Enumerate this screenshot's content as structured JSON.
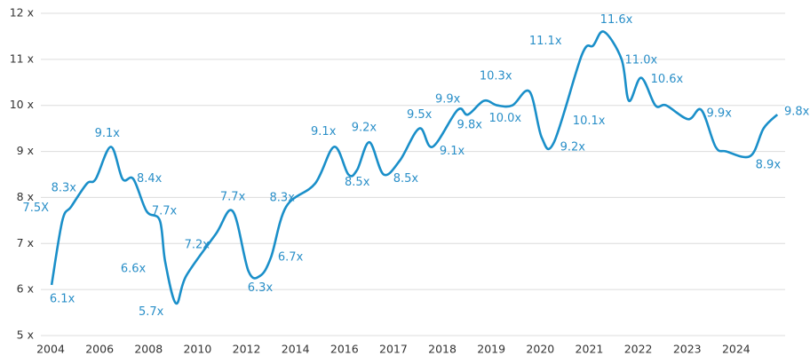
{
  "chart_data": {
    "type": "line",
    "color": "#1a8fc9",
    "x": [
      0.02,
      0.24,
      0.42,
      0.74,
      0.92,
      1.23,
      1.47,
      1.69,
      1.96,
      2.23,
      2.34,
      2.56,
      2.77,
      3.37,
      3.72,
      4.04,
      4.28,
      4.5,
      4.81,
      5.4,
      5.79,
      6.08,
      6.26,
      6.51,
      6.8,
      7.13,
      7.53,
      7.8,
      8.31,
      8.52,
      8.85,
      9.12,
      9.43,
      9.78,
      10.03,
      10.28,
      10.85,
      11.08,
      11.3,
      11.66,
      11.81,
      12.06,
      12.35,
      12.57,
      13.02,
      13.29,
      13.58,
      13.8,
      14.29,
      14.56,
      14.84
    ],
    "values": [
      6.1,
      7.5,
      7.8,
      8.3,
      8.4,
      9.1,
      8.4,
      8.4,
      7.7,
      7.5,
      6.6,
      5.7,
      6.3,
      7.2,
      7.7,
      6.4,
      6.3,
      6.7,
      7.8,
      8.3,
      9.1,
      8.5,
      8.6,
      9.2,
      8.5,
      8.8,
      9.5,
      9.1,
      9.9,
      9.8,
      10.1,
      10.0,
      10.0,
      10.3,
      9.3,
      9.2,
      11.1,
      11.3,
      11.6,
      11.0,
      10.1,
      10.6,
      10.0,
      10.0,
      9.7,
      9.9,
      9.1,
      9.0,
      8.9,
      9.5,
      9.8
    ],
    "value_labels": [
      "6.1x",
      "7.5X",
      null,
      "8.3x",
      null,
      "9.1x",
      null,
      "8.4x",
      "7.7x",
      null,
      "6.6x",
      "5.7x",
      null,
      "7.2x",
      "7.7x",
      null,
      "6.3x",
      "6.7x",
      null,
      "8.3x",
      "9.1x",
      "8.5x",
      null,
      "9.2x",
      "8.5x",
      null,
      "9.5x",
      "9.1x",
      "9.9x",
      "9.8x",
      null,
      "10.0x",
      null,
      "10.3x",
      null,
      "9.2x",
      "11.1x",
      null,
      "11.6x",
      "11.0x",
      "10.1x",
      "10.6x",
      null,
      null,
      null,
      "9.9x",
      null,
      null,
      "8.9x",
      null,
      "9.8x"
    ],
    "xlim": [
      0,
      15
    ],
    "xticks": [
      {
        "value": 0,
        "label": "2004"
      },
      {
        "value": 1,
        "label": "2006"
      },
      {
        "value": 2,
        "label": "2008"
      },
      {
        "value": 3,
        "label": "2010"
      },
      {
        "value": 4,
        "label": "2012"
      },
      {
        "value": 5,
        "label": "2014"
      },
      {
        "value": 6,
        "label": "2016"
      },
      {
        "value": 7,
        "label": "2017"
      },
      {
        "value": 8,
        "label": "2018"
      },
      {
        "value": 9,
        "label": "2019"
      },
      {
        "value": 10,
        "label": "2020"
      },
      {
        "value": 11,
        "label": "2021"
      },
      {
        "value": 12,
        "label": "2022"
      },
      {
        "value": 13,
        "label": "2023"
      },
      {
        "value": 14,
        "label": "2024"
      }
    ],
    "ylim": [
      5,
      12
    ],
    "yticks": [
      {
        "value": 5,
        "label": "5 x"
      },
      {
        "value": 6,
        "label": "6 x"
      },
      {
        "value": 7,
        "label": "7 x"
      },
      {
        "value": 8,
        "label": "8 x"
      },
      {
        "value": 9,
        "label": "9 x"
      },
      {
        "value": 10,
        "label": "10 x"
      },
      {
        "value": 11,
        "label": "11 x"
      },
      {
        "value": 12,
        "label": "12 x"
      }
    ],
    "grid": true
  }
}
